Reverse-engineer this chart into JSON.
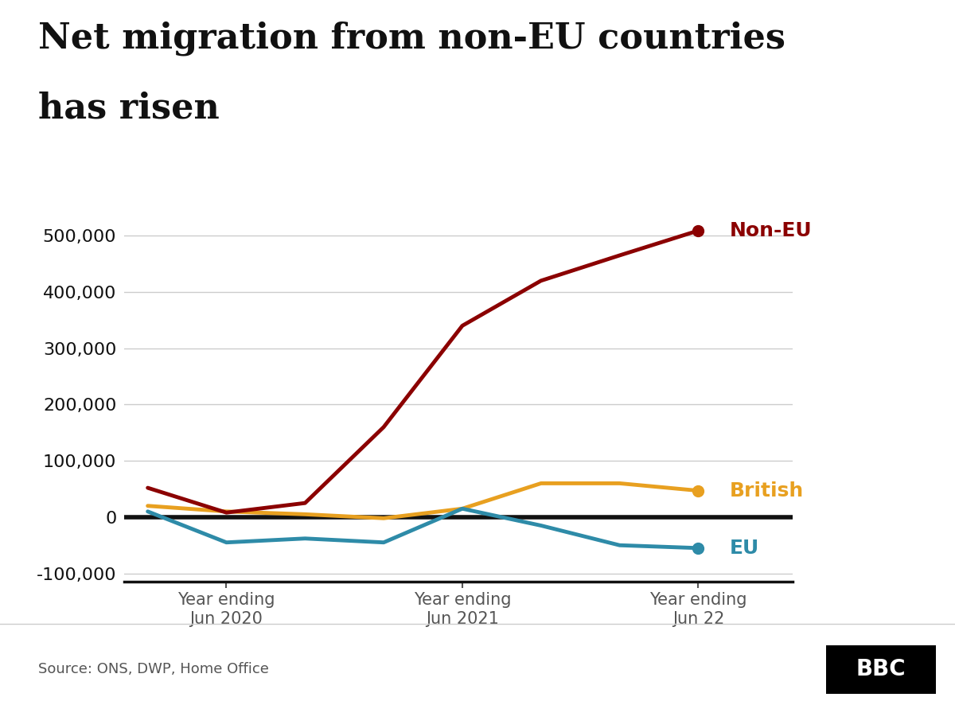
{
  "title_line1": "Net migration from non-EU countries",
  "title_line2": "has risen",
  "title_fontsize": 32,
  "source_text": "Source: ONS, DWP, Home Office",
  "x_labels": [
    "Year ending\nJun 2020",
    "Year ending\nJun 2021",
    "Year ending\nJun 22"
  ],
  "x_tick_positions": [
    1,
    4,
    7
  ],
  "non_eu_x": [
    0,
    1,
    2,
    3,
    4,
    5,
    6,
    7
  ],
  "non_eu_y": [
    52000,
    8000,
    25000,
    160000,
    340000,
    420000,
    465000,
    509000
  ],
  "british_x": [
    0,
    1,
    2,
    3,
    4,
    5,
    6,
    7
  ],
  "british_y": [
    20000,
    10000,
    5000,
    -2000,
    15000,
    60000,
    60000,
    47000
  ],
  "eu_x": [
    0,
    1,
    2,
    3,
    4,
    5,
    6,
    7
  ],
  "eu_y": [
    10000,
    -45000,
    -38000,
    -45000,
    15000,
    -15000,
    -50000,
    -55000
  ],
  "non_eu_color": "#8B0000",
  "british_color": "#E8A020",
  "eu_color": "#2E8BA8",
  "zero_line_color": "#111111",
  "background_color": "#ffffff",
  "ylim": [
    -115000,
    570000
  ],
  "yticks": [
    -100000,
    0,
    100000,
    200000,
    300000,
    400000,
    500000
  ],
  "grid_color": "#cccccc",
  "label_non_eu": "Non-EU",
  "label_british": "British",
  "label_eu": "EU",
  "bbc_box_color": "#000000",
  "bbc_text_color": "#ffffff",
  "axis_label_color": "#111111",
  "tick_label_color": "#555555"
}
